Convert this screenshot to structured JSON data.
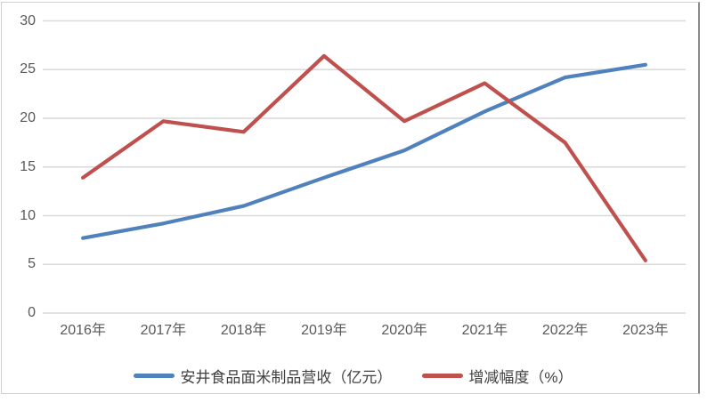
{
  "chart_data": {
    "type": "line",
    "title": "",
    "xlabel": "",
    "ylabel": "",
    "categories": [
      "2016年",
      "2017年",
      "2018年",
      "2019年",
      "2020年",
      "2021年",
      "2022年",
      "2023年"
    ],
    "series": [
      {
        "name": "安井食品面米制品营收（亿元）",
        "color": "#4F81BD",
        "values": [
          7.7,
          9.2,
          11.0,
          13.9,
          16.7,
          20.7,
          24.2,
          25.5
        ]
      },
      {
        "name": "增减幅度（%）",
        "color": "#C0504D",
        "values": [
          13.9,
          19.7,
          18.6,
          26.4,
          19.7,
          23.6,
          17.5,
          5.4
        ]
      }
    ],
    "ylim": [
      0,
      30
    ],
    "yticks": [
      0,
      5,
      10,
      15,
      20,
      25,
      30
    ],
    "grid": true,
    "gridline_color": "#D9D9D9",
    "axis_text_color": "#595959",
    "legend_position": "bottom"
  }
}
